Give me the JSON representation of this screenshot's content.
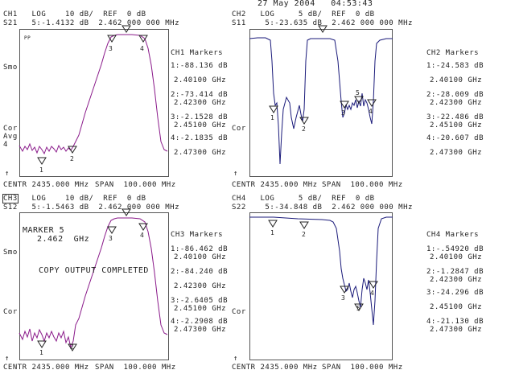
{
  "timestamp": "27 May 2004   04:53:43",
  "colors": {
    "trace_ch1": "#8a1a8a",
    "trace_ch2": "#1a1a7a",
    "trace_ch3": "#8a1a8a",
    "trace_ch4": "#1a1a7a",
    "grid": "#777777",
    "text": "#222222"
  },
  "ch1": {
    "header_a": "CH1   LOG    10 dB/  REF  0 dB",
    "header_b": "S21   5:-1.4132 dB  2.462 000 000 MHz",
    "side": {
      "pp": "PP",
      "smo": "Smo",
      "cor": "Cor",
      "avg": "Avg",
      "avg_n": "4",
      "ref": "↑"
    },
    "footer_centre": "CENTR 2435.000 MHz",
    "footer_span": "SPAN  100.000 MHz",
    "markers_title": "CH1 Markers",
    "markers": [
      "1:-88.136 dB",
      "2.40100 GHz",
      "2:-73.414 dB",
      "2.42300 GHz",
      "3:-2.1528 dB",
      "2.45100 GHz",
      "4:-2.1835 dB",
      "2.47300 GHz"
    ]
  },
  "ch2": {
    "header_a": "CH2   LOG     5 dB/  REF  0 dB",
    "header_b": "S11    5:-23.635 dB  2.462 000 000 MHz",
    "side": {
      "cor": "Cor",
      "ref": "↑"
    },
    "footer_centre": "CENTR 2435.000 MHz",
    "footer_span": "SPAN  100.000 MHz",
    "markers_title": "CH2 Markers",
    "markers": [
      "1:-24.583 dB",
      "2.40100 GHz",
      "2:-28.009 dB",
      "2.42300 GHz",
      "3:-22.486 dB",
      "2.45100 GHz",
      "4:-20.607 dB",
      "2.47300 GHz"
    ]
  },
  "ch3": {
    "header_a": "CH3   LOG    10 dB/  REF  0 dB",
    "header_b": "S12   5:-1.5463 dB  2.462 000 000 MHz",
    "side": {
      "smo": "Smo",
      "cor": "Cor",
      "ref": "↑"
    },
    "overlay_marker": "MARKER 5",
    "overlay_freq": "2.462  GHz",
    "overlay_msg": "COPY OUTPUT COMPLETED",
    "footer_centre": "CENTR 2435.000 MHz",
    "footer_span": "SPAN  100.000 MHz",
    "markers_title": "CH3 Markers",
    "markers": [
      "1:-86.462 dB",
      "2.40100 GHz",
      "2:-84.240 dB",
      "2.42300 GHz",
      "3:-2.6405 dB",
      "2.45100 GHz",
      "4:-2.2908 dB",
      "2.47300 GHz"
    ]
  },
  "ch4": {
    "header_a": "CH4   LOG     5 dB/  REF  0 dB",
    "header_b": "S22    5:-34.848 dB  2.462 000 000 MHz",
    "side": {
      "cor": "Cor",
      "ref": "↑"
    },
    "footer_centre": "CENTR 2435.000 MHz",
    "footer_span": "SPAN  100.000 MHz",
    "markers_title": "CH4 Markers",
    "markers": [
      "1:-.54920 dB",
      "2.40100 GHz",
      "2:-1.2847 dB",
      "2.42300 GHz",
      "3:-24.296 dB",
      "2.45100 GHz",
      "4:-21.130 dB",
      "2.47300 GHz"
    ]
  },
  "marker_labels": [
    "1",
    "2",
    "3",
    "4",
    "5"
  ]
}
